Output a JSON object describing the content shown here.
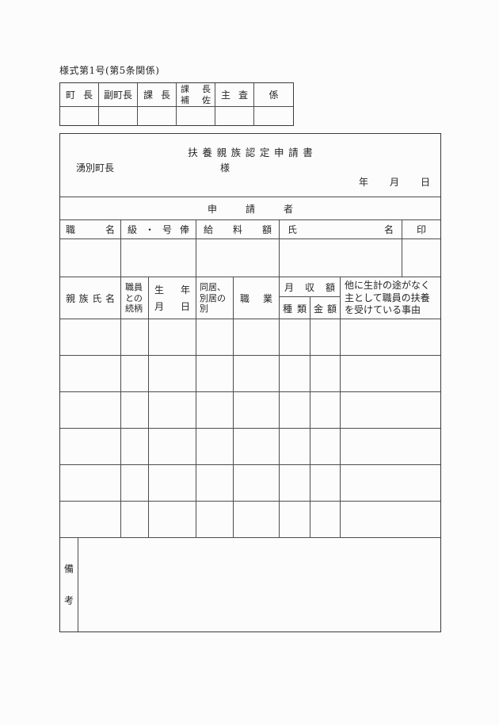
{
  "form_number": "様式第1号(第5条関係)",
  "approval_columns": [
    "町長",
    "副町長",
    "課長",
    "課長\n補佐",
    "主査",
    "係"
  ],
  "title": "扶養親族認定申請書",
  "addressee": "湧別町長",
  "honorific": "様",
  "date_labels": {
    "year": "年",
    "month": "月",
    "day": "日"
  },
  "applicant_section_label": "申請者",
  "applicant_headers": {
    "position": "職名",
    "grade": "級・号俸",
    "salary": "給料額",
    "name": "氏名",
    "seal": "印"
  },
  "family_headers": {
    "name": "親族氏名",
    "relationship": "職員\nとの\n続柄",
    "birthdate": "生年\n月日",
    "living": "同居、\n別居の\n別",
    "occupation": "職業",
    "monthly_income": "月収額",
    "income_type": "種類",
    "income_amount": "金額",
    "reason": "他に生計の途がなく\n主として職員の扶養\nを受けている事由"
  },
  "family_row_count": 6,
  "remarks_label": "備\n考",
  "colors": {
    "paper": "#fcfcfc",
    "line_outer": "#3a3a3a",
    "line_inner": "#4d4d4d",
    "text": "#262626"
  }
}
